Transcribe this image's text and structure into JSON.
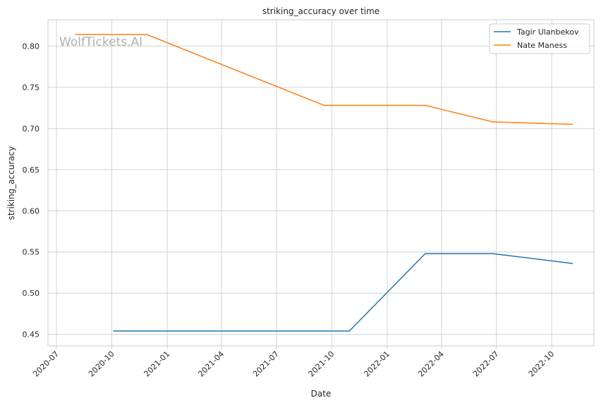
{
  "chart_data": {
    "type": "line",
    "title": "striking_accuracy over time",
    "xlabel": "Date",
    "ylabel": "striking_accuracy",
    "watermark": "WolfTickets.AI",
    "xlim": [
      "2020-06-17",
      "2022-12-10"
    ],
    "ylim": [
      0.436,
      0.832
    ],
    "x_ticks": [
      "2020-07",
      "2020-10",
      "2021-01",
      "2021-04",
      "2021-07",
      "2021-10",
      "2022-01",
      "2022-04",
      "2022-07",
      "2022-10"
    ],
    "x_tick_dates": [
      "2020-07-01",
      "2020-10-01",
      "2021-01-01",
      "2021-04-01",
      "2021-07-01",
      "2021-10-01",
      "2022-01-01",
      "2022-04-01",
      "2022-07-01",
      "2022-10-01"
    ],
    "y_ticks": [
      "0.45",
      "0.50",
      "0.55",
      "0.60",
      "0.65",
      "0.70",
      "0.75",
      "0.80"
    ],
    "y_tick_values": [
      0.45,
      0.5,
      0.55,
      0.6,
      0.65,
      0.7,
      0.75,
      0.8
    ],
    "grid": true,
    "legend_position": "top-right",
    "series": [
      {
        "name": "Tagir Ulanbekov",
        "color": "#1f77b4",
        "points": [
          {
            "x": "2020-10-03",
            "y": 0.454
          },
          {
            "x": "2021-10-30",
            "y": 0.454
          },
          {
            "x": "2022-03-05",
            "y": 0.548
          },
          {
            "x": "2022-06-25",
            "y": 0.548
          },
          {
            "x": "2022-11-05",
            "y": 0.536
          }
        ]
      },
      {
        "name": "Nate Maness",
        "color": "#ff7f0e",
        "points": [
          {
            "x": "2020-08-01",
            "y": 0.814
          },
          {
            "x": "2020-11-28",
            "y": 0.814
          },
          {
            "x": "2021-09-18",
            "y": 0.728
          },
          {
            "x": "2022-03-05",
            "y": 0.728
          },
          {
            "x": "2022-06-25",
            "y": 0.708
          },
          {
            "x": "2022-11-05",
            "y": 0.705
          }
        ]
      }
    ]
  }
}
